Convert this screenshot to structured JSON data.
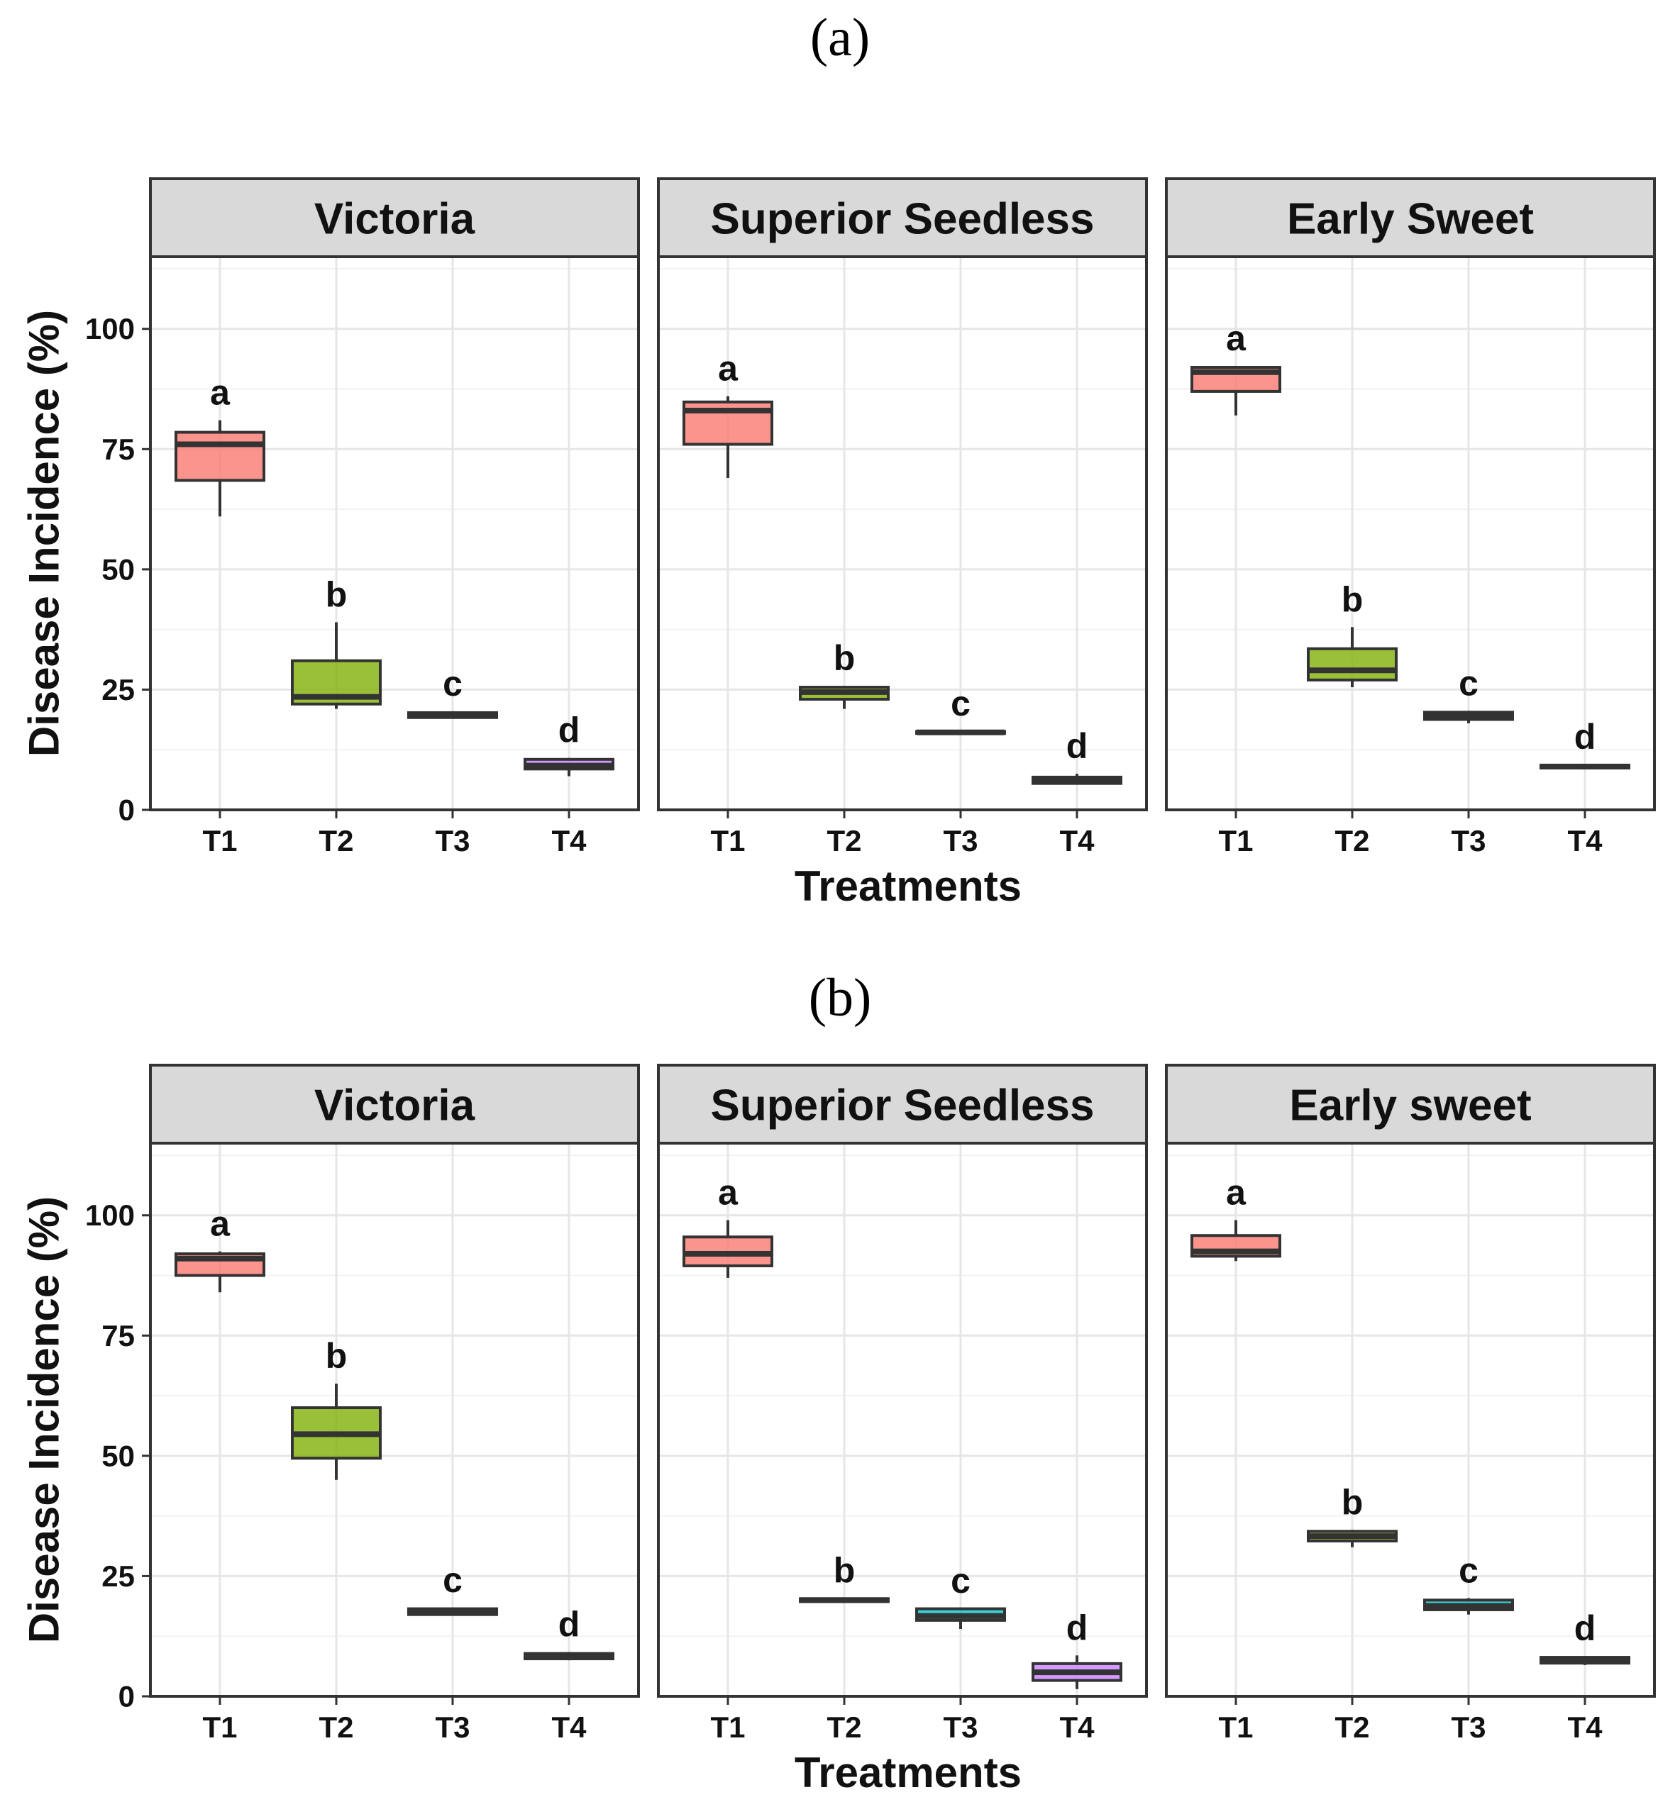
{
  "chart_data": [
    {
      "type": "box",
      "figure_label": "(a)",
      "xlabel": "Treatments",
      "ylabel": "Disease Incidence (%)",
      "ylim": [
        0,
        115
      ],
      "yticks": [
        0,
        25,
        50,
        75,
        100
      ],
      "categories": [
        "T1",
        "T2",
        "T3",
        "T4"
      ],
      "colors": {
        "T1": "#f8766d",
        "T2": "#7cae00",
        "T3": "#00bfc4",
        "T4": "#c77cff"
      },
      "panels": [
        {
          "name": "Victoria",
          "boxes": [
            {
              "category": "T1",
              "min": 61,
              "q1": 68.5,
              "median": 76,
              "q3": 78.5,
              "max": 81,
              "letter": "a"
            },
            {
              "category": "T2",
              "min": 21,
              "q1": 22,
              "median": 23.5,
              "q3": 31,
              "max": 39,
              "letter": "b"
            },
            {
              "category": "T3",
              "min": 19,
              "q1": 19.2,
              "median": 19.7,
              "q3": 20.2,
              "max": 20.5,
              "letter": "c"
            },
            {
              "category": "T4",
              "min": 7,
              "q1": 8.5,
              "median": 9.2,
              "q3": 10.5,
              "max": 10.8,
              "letter": "d"
            }
          ]
        },
        {
          "name": "Superior Seedless",
          "boxes": [
            {
              "category": "T1",
              "min": 69,
              "q1": 76,
              "median": 83,
              "q3": 84.8,
              "max": 86,
              "letter": "a"
            },
            {
              "category": "T2",
              "min": 21,
              "q1": 23,
              "median": 24.5,
              "q3": 25.5,
              "max": 25.8,
              "letter": "b"
            },
            {
              "category": "T3",
              "min": 15.8,
              "q1": 15.9,
              "median": 16.1,
              "q3": 16.3,
              "max": 16.4,
              "letter": "c"
            },
            {
              "category": "T4",
              "min": 5.3,
              "q1": 5.5,
              "median": 6,
              "q3": 6.8,
              "max": 7.5,
              "letter": "d"
            }
          ]
        },
        {
          "name": "Early Sweet",
          "boxes": [
            {
              "category": "T1",
              "min": 82,
              "q1": 87,
              "median": 91,
              "q3": 92,
              "max": 92.3,
              "letter": "a"
            },
            {
              "category": "T2",
              "min": 25.5,
              "q1": 27,
              "median": 29,
              "q3": 33.5,
              "max": 38,
              "letter": "b"
            },
            {
              "category": "T3",
              "min": 18,
              "q1": 18.8,
              "median": 19.5,
              "q3": 20.3,
              "max": 20.6,
              "letter": "c"
            },
            {
              "category": "T4",
              "min": 8.6,
              "q1": 8.7,
              "median": 9,
              "q3": 9.3,
              "max": 9.4,
              "letter": "d"
            }
          ]
        }
      ]
    },
    {
      "type": "box",
      "figure_label": "(b)",
      "xlabel": "Treatments",
      "ylabel": "Disease Incidence (%)",
      "ylim": [
        0,
        115
      ],
      "yticks": [
        0,
        25,
        50,
        75,
        100
      ],
      "categories": [
        "T1",
        "T2",
        "T3",
        "T4"
      ],
      "colors": {
        "T1": "#f8766d",
        "T2": "#7cae00",
        "T3": "#00bfc4",
        "T4": "#c77cff"
      },
      "panels": [
        {
          "name": "Victoria",
          "boxes": [
            {
              "category": "T1",
              "min": 84,
              "q1": 87.5,
              "median": 91,
              "q3": 92,
              "max": 92.5,
              "letter": "a"
            },
            {
              "category": "T2",
              "min": 45,
              "q1": 49.5,
              "median": 54.5,
              "q3": 60,
              "max": 65,
              "letter": "b"
            },
            {
              "category": "T3",
              "min": 16.8,
              "q1": 17,
              "median": 17.6,
              "q3": 18.2,
              "max": 18.4,
              "letter": "c"
            },
            {
              "category": "T4",
              "min": 7.5,
              "q1": 7.8,
              "median": 8.3,
              "q3": 8.9,
              "max": 9.2,
              "letter": "d"
            }
          ]
        },
        {
          "name": "Superior Seedless",
          "boxes": [
            {
              "category": "T1",
              "min": 87,
              "q1": 89.5,
              "median": 92,
              "q3": 95.5,
              "max": 99,
              "letter": "a"
            },
            {
              "category": "T2",
              "min": 19.6,
              "q1": 19.7,
              "median": 20,
              "q3": 20.3,
              "max": 20.4,
              "letter": "b"
            },
            {
              "category": "T3",
              "min": 14,
              "q1": 15.8,
              "median": 16.7,
              "q3": 18.2,
              "max": 18.3,
              "letter": "c"
            },
            {
              "category": "T4",
              "min": 1.5,
              "q1": 3.3,
              "median": 5,
              "q3": 6.8,
              "max": 8.5,
              "letter": "d"
            }
          ]
        },
        {
          "name": "Early sweet",
          "boxes": [
            {
              "category": "T1",
              "min": 90.5,
              "q1": 91.5,
              "median": 92.5,
              "q3": 95.8,
              "max": 99,
              "letter": "a"
            },
            {
              "category": "T2",
              "min": 31,
              "q1": 32.3,
              "median": 33.3,
              "q3": 34.3,
              "max": 34.6,
              "letter": "b"
            },
            {
              "category": "T3",
              "min": 17,
              "q1": 18,
              "median": 18.8,
              "q3": 20,
              "max": 20.4,
              "letter": "c"
            },
            {
              "category": "T4",
              "min": 6.5,
              "q1": 6.9,
              "median": 7.5,
              "q3": 8.1,
              "max": 8.4,
              "letter": "d"
            }
          ]
        }
      ]
    }
  ]
}
